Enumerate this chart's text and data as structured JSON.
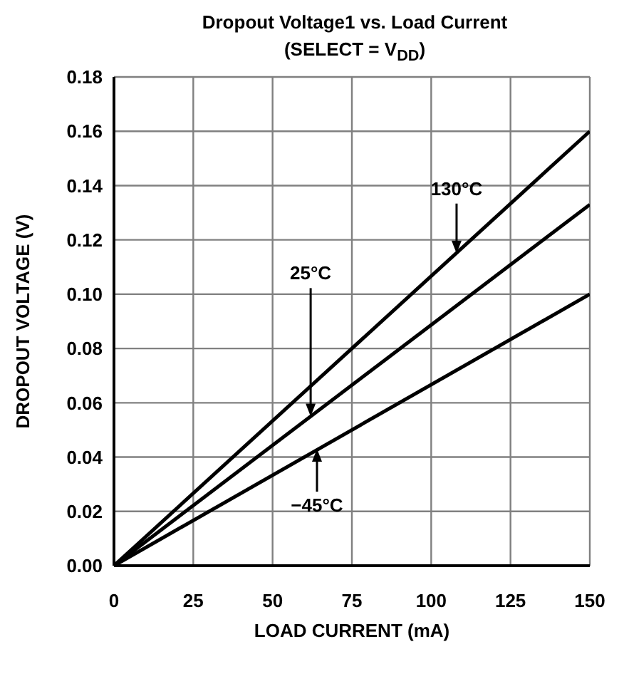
{
  "chart_data": {
    "type": "line",
    "title": "Dropout Voltage1 vs. Load Current",
    "subtitle": "(SELECT  = V$_{DD}$)",
    "xlabel": "LOAD CURRENT (mA)",
    "ylabel": "DROPOUT VOLTAGE (V)",
    "x": [
      0,
      150
    ],
    "series": [
      {
        "color": "#000000",
        "values": [
          0,
          0.16
        ]
      },
      {
        "color": "#000000",
        "values": [
          0,
          0.133
        ]
      },
      {
        "color": "#000000",
        "values": [
          0,
          0.1
        ]
      }
    ],
    "annotations": [
      {
        "text": "130°C",
        "x": 108,
        "y": 0.115
      },
      {
        "text": "25°C",
        "x": 62,
        "y": 0.055
      },
      {
        "text": "−45°C",
        "x": 64,
        "y": 0.043
      }
    ],
    "xlim": [
      0,
      150
    ],
    "xticks": [
      0,
      25,
      50,
      75,
      100,
      125,
      150
    ],
    "ylim": [
      0,
      0.18
    ],
    "yticks": [
      {
        "value": 0,
        "label": "0.00"
      },
      0.02,
      0.04,
      0.06,
      0.08,
      {
        "value": 0.1,
        "label": "0.10"
      },
      0.12,
      0.14,
      0.16,
      0.18
    ],
    "grid": true,
    "marker": "none",
    "line_style": "solid"
  }
}
